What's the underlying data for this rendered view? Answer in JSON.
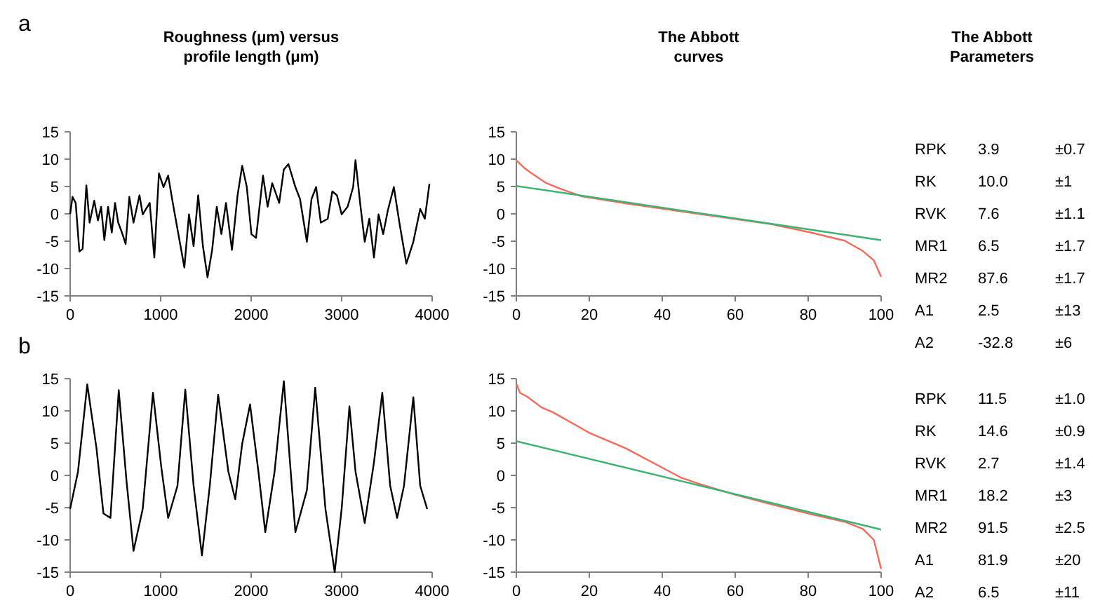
{
  "chart_data": [
    {
      "type": "line",
      "title": "Roughness (μm) versus profile length (μm)",
      "annotations": [
        "a"
      ],
      "xlim": [
        0,
        4000
      ],
      "xticks": [
        0,
        1000,
        2000,
        3000,
        4000
      ],
      "ylim": [
        -15,
        15
      ],
      "yticks": [
        -15,
        -10,
        -5,
        0,
        5,
        10,
        15
      ],
      "grid": false,
      "marker": "none",
      "line_style": "solid",
      "x": [
        0,
        26,
        61,
        102,
        138,
        179,
        215,
        266,
        307,
        342,
        378,
        419,
        460,
        496,
        531,
        572,
        613,
        654,
        700,
        766,
        802,
        879,
        930,
        981,
        1032,
        1083,
        1134,
        1211,
        1262,
        1313,
        1364,
        1415,
        1467,
        1518,
        1569,
        1620,
        1671,
        1722,
        1788,
        1850,
        1901,
        1952,
        2003,
        2054,
        2131,
        2182,
        2233,
        2310,
        2361,
        2412,
        2489,
        2540,
        2616,
        2667,
        2718,
        2770,
        2846,
        2897,
        2948,
        3000,
        3066,
        3127,
        3153,
        3204,
        3255,
        3306,
        3357,
        3408,
        3459,
        3510,
        3577,
        3638,
        3715,
        3792,
        3868,
        3919,
        3970
      ],
      "series": [
        {
          "color": "#000000",
          "values": [
            0,
            3.1,
            2.0,
            -6.9,
            -6.4,
            5.2,
            -1.6,
            2.4,
            -1.2,
            1.3,
            -4.8,
            1.3,
            -3.4,
            2.0,
            -1.6,
            -3.4,
            -5.5,
            3.1,
            -1.6,
            3.4,
            -0.1,
            2.0,
            -8.0,
            7.4,
            4.9,
            7.0,
            2.0,
            -5.1,
            -9.8,
            -0.1,
            -5.9,
            3.4,
            -5.9,
            -11.6,
            -6.6,
            1.3,
            -3.7,
            2.0,
            -6.6,
            3.4,
            8.8,
            4.9,
            -3.7,
            -4.4,
            7.0,
            1.3,
            5.6,
            2.0,
            8.1,
            9.1,
            4.9,
            2.7,
            -5.1,
            2.7,
            4.9,
            -1.6,
            -0.9,
            4.1,
            3.4,
            -0.1,
            1.3,
            4.9,
            9.8,
            2.0,
            -5.1,
            -0.9,
            -8.0,
            -0.1,
            -3.7,
            0.6,
            4.9,
            -1.6,
            -9.1,
            -5.1,
            0.9,
            -0.9,
            5.5
          ]
        }
      ]
    },
    {
      "type": "line",
      "title": "The Abbott curves",
      "xlim": [
        0,
        100
      ],
      "xticks": [
        0,
        20,
        40,
        60,
        80,
        100
      ],
      "ylim": [
        -15,
        15
      ],
      "yticks": [
        -15,
        -10,
        -5,
        0,
        5,
        10,
        15
      ],
      "grid": false,
      "marker": "none",
      "line_style": "solid",
      "series": [
        {
          "color": "#f26b5b",
          "x": [
            0,
            2,
            4,
            8,
            12,
            18,
            30,
            50,
            70,
            80,
            90,
            95,
            98,
            100
          ],
          "values": [
            9.8,
            8.5,
            7.5,
            5.7,
            4.6,
            3.2,
            1.9,
            0,
            -1.9,
            -3.3,
            -4.9,
            -6.8,
            -8.5,
            -11.5
          ]
        },
        {
          "color": "#3cb371",
          "x": [
            0,
            100
          ],
          "values": [
            5.1,
            -4.8
          ]
        }
      ]
    },
    {
      "type": "other",
      "title": "The Abbott Parameters",
      "categories": [
        "RPK",
        "RK",
        "RVK",
        "MR1",
        "MR2",
        "A1",
        "A2"
      ],
      "series": [
        {
          "values": [
            3.9,
            10.0,
            7.6,
            6.5,
            87.6,
            2.5,
            -32.8
          ],
          "value_labels": [
            "3.9",
            "10.0",
            "7.6",
            "6.5",
            "87.6",
            "2.5",
            "-32.8"
          ]
        },
        {
          "values": [
            0.7,
            1,
            1.1,
            1.7,
            1.7,
            13,
            6
          ],
          "value_labels": [
            "±0.7",
            "±1",
            "±1.1",
            "±1.7",
            "±1.7",
            "±13",
            "±6"
          ]
        }
      ]
    },
    {
      "type": "line",
      "annotations": [
        "b"
      ],
      "xlim": [
        0,
        4000
      ],
      "xticks": [
        0,
        1000,
        2000,
        3000,
        4000
      ],
      "ylim": [
        -15,
        15
      ],
      "yticks": [
        -15,
        -10,
        -5,
        0,
        5,
        10,
        15
      ],
      "grid": false,
      "marker": "none",
      "line_style": "solid",
      "x": [
        0,
        87,
        189,
        291,
        368,
        445,
        537,
        623,
        700,
        802,
        915,
        1007,
        1083,
        1186,
        1272,
        1364,
        1456,
        1543,
        1635,
        1748,
        1824,
        1901,
        1988,
        2080,
        2156,
        2259,
        2361,
        2437,
        2489,
        2616,
        2708,
        2821,
        2923,
        3000,
        3086,
        3153,
        3255,
        3357,
        3449,
        3536,
        3613,
        3689,
        3792,
        3868,
        3945
      ],
      "series": [
        {
          "color": "#000000",
          "values": [
            -5.2,
            0.6,
            14.1,
            4.2,
            -5.9,
            -6.6,
            13.2,
            -0.9,
            -11.7,
            -5.2,
            12.8,
            1.3,
            -6.6,
            -1.6,
            13.3,
            -1.6,
            -12.4,
            -1.6,
            12.5,
            0.6,
            -3.7,
            4.9,
            11.0,
            0.6,
            -8.8,
            0.6,
            14.6,
            0.6,
            -8.8,
            -2.3,
            13.6,
            -5.2,
            -15,
            -5.2,
            10.7,
            0.6,
            -7.4,
            2.0,
            12.8,
            -1.6,
            -6.6,
            -1.6,
            12.1,
            -1.6,
            -5.2
          ]
        }
      ]
    },
    {
      "type": "line",
      "xlim": [
        0,
        100
      ],
      "xticks": [
        0,
        20,
        40,
        60,
        80,
        100
      ],
      "ylim": [
        -15,
        15
      ],
      "yticks": [
        -15,
        -10,
        -5,
        0,
        5,
        10,
        15
      ],
      "grid": false,
      "marker": "none",
      "line_style": "solid",
      "series": [
        {
          "color": "#f26b5b",
          "x": [
            0,
            1,
            3,
            7,
            10,
            15,
            20,
            30,
            40,
            45,
            50,
            60,
            70,
            80,
            90,
            95,
            98,
            100
          ],
          "values": [
            14.2,
            12.8,
            12.2,
            10.5,
            9.8,
            8.2,
            6.6,
            4.2,
            1.2,
            -0.3,
            -1.3,
            -3.0,
            -4.5,
            -5.9,
            -7.2,
            -8.3,
            -10,
            -14.5
          ]
        },
        {
          "color": "#3cb371",
          "x": [
            0,
            100
          ],
          "values": [
            5.3,
            -8.4
          ]
        }
      ]
    },
    {
      "type": "other",
      "categories": [
        "RPK",
        "RK",
        "RVK",
        "MR1",
        "MR2",
        "A1",
        "A2"
      ],
      "series": [
        {
          "values": [
            11.5,
            14.6,
            2.7,
            18.2,
            91.5,
            81.9,
            6.5
          ],
          "value_labels": [
            "11.5",
            "14.6",
            "2.7",
            "18.2",
            "91.5",
            "81.9",
            "6.5"
          ]
        },
        {
          "values": [
            1.0,
            0.9,
            1.4,
            3,
            2.5,
            20,
            11
          ],
          "value_labels": [
            "±1.0",
            "±0.9",
            "±1.4",
            "±3",
            "±2.5",
            "±20",
            "±11"
          ]
        }
      ]
    }
  ]
}
